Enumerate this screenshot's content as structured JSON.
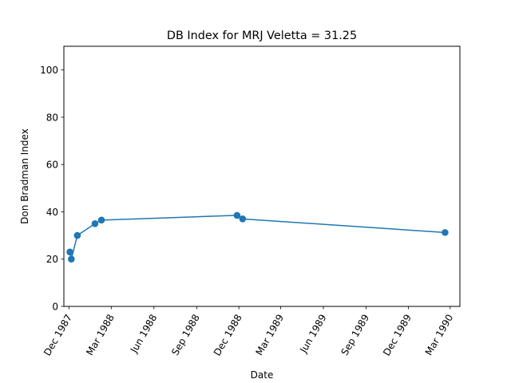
{
  "chart_data": {
    "type": "line",
    "title": "DB Index for MRJ Veletta = 31.25",
    "xlabel": "Date",
    "ylabel": "Don Bradman Index",
    "ylim": [
      0,
      110
    ],
    "xlim": [
      "1987-11-20",
      "1990-03-22"
    ],
    "y_ticks": [
      0,
      20,
      40,
      60,
      80,
      100
    ],
    "x_ticks": [
      {
        "date": "1987-12-01",
        "label": "Dec 1987"
      },
      {
        "date": "1988-03-01",
        "label": "Mar 1988"
      },
      {
        "date": "1988-06-01",
        "label": "Jun 1988"
      },
      {
        "date": "1988-09-01",
        "label": "Sep 1988"
      },
      {
        "date": "1988-12-01",
        "label": "Dec 1988"
      },
      {
        "date": "1989-03-01",
        "label": "Mar 1989"
      },
      {
        "date": "1989-06-01",
        "label": "Jun 1989"
      },
      {
        "date": "1989-09-01",
        "label": "Sep 1989"
      },
      {
        "date": "1989-12-01",
        "label": "Dec 1989"
      },
      {
        "date": "1990-03-01",
        "label": "Mar 1990"
      }
    ],
    "grid": false,
    "color": "#1f77b4",
    "series": [
      {
        "x": [
          "1987-12-03",
          "1987-12-06",
          "1987-12-19",
          "1988-01-26",
          "1988-02-09",
          "1988-11-27",
          "1988-12-09",
          "1990-02-18"
        ],
        "y": [
          23.0,
          20.0,
          30.0,
          35.0,
          36.5,
          38.5,
          37.0,
          31.25
        ]
      }
    ]
  }
}
